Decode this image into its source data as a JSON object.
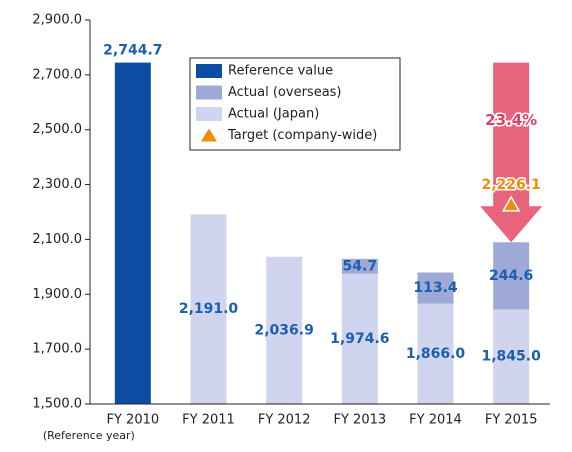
{
  "chart_data": {
    "type": "bar",
    "categories": [
      "FY 2010",
      "FY 2011",
      "FY 2012",
      "FY 2013",
      "FY 2014",
      "FY 2015"
    ],
    "category_notes": [
      "(Reference year)",
      null,
      null,
      null,
      null,
      null
    ],
    "series": [
      {
        "name": "Reference value",
        "color": "#0a4da2",
        "values": [
          2744.7,
          null,
          null,
          null,
          null,
          null
        ],
        "value_labels": [
          "2,744.7",
          null,
          null,
          null,
          null,
          null
        ]
      },
      {
        "name": "Actual (overseas)",
        "color": "#9ea9d8",
        "values": [
          null,
          null,
          null,
          54.7,
          113.4,
          244.6
        ],
        "value_labels": [
          null,
          null,
          null,
          "54.7",
          "113.4",
          "244.6"
        ]
      },
      {
        "name": "Actual (Japan)",
        "color": "#d0d4ee",
        "values": [
          null,
          2191.0,
          2036.9,
          1974.6,
          1866.0,
          1845.0
        ],
        "value_labels": [
          null,
          "2,191.0",
          "2,036.9",
          "1,974.6",
          "1,866.0",
          "1,845.0"
        ]
      }
    ],
    "target": {
      "name": "Target (company-wide)",
      "color": "#f08c00",
      "values": [
        null,
        null,
        null,
        null,
        null,
        2226.1
      ],
      "value_labels": [
        null,
        null,
        null,
        null,
        null,
        "2,226.1"
      ]
    },
    "annotation": "23.4%",
    "ylim": [
      1500,
      2900
    ],
    "yticks": [
      {
        "value": 1500,
        "label": "1,500.0"
      },
      {
        "value": 1700,
        "label": "1,700.0"
      },
      {
        "value": 1900,
        "label": "1,900.0"
      },
      {
        "value": 2100,
        "label": "2,100.0"
      },
      {
        "value": 2300,
        "label": "2,300.0"
      },
      {
        "value": 2500,
        "label": "2,500.0"
      },
      {
        "value": 2700,
        "label": "2,700.0"
      },
      {
        "value": 2900,
        "label": "2,900.0"
      }
    ]
  }
}
